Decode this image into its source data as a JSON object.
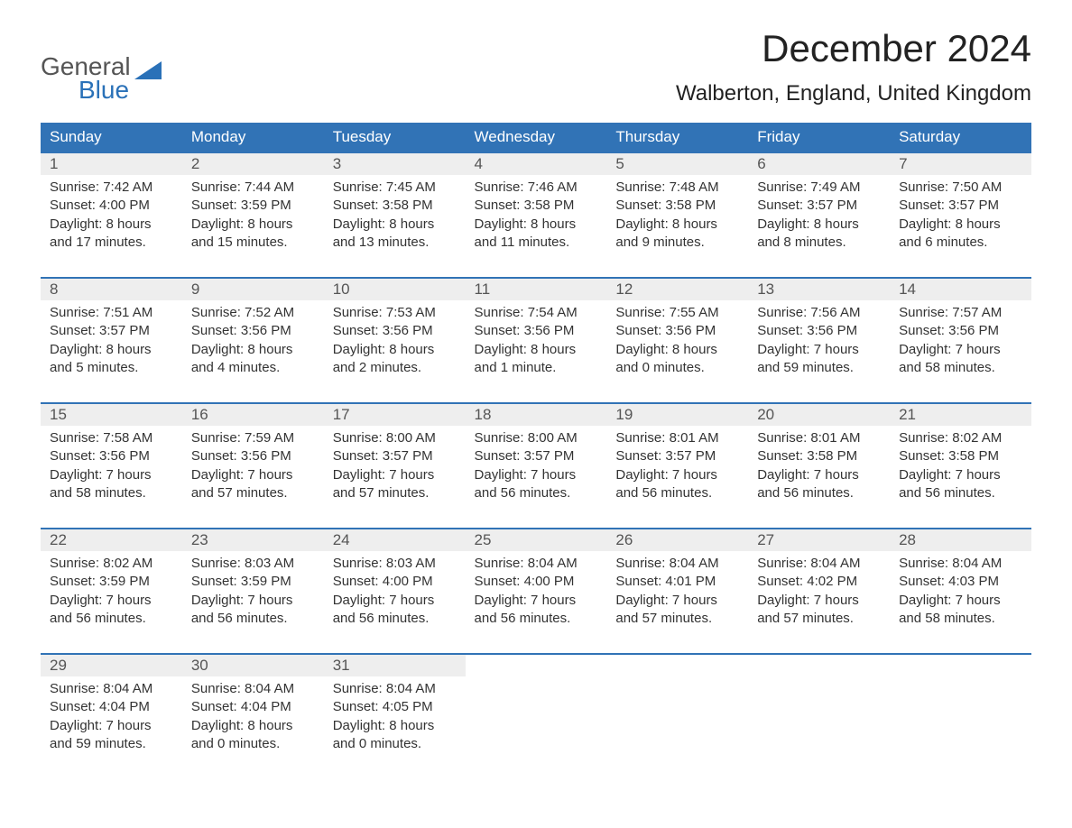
{
  "logo": {
    "top": "General",
    "bottom": "Blue"
  },
  "title": "December 2024",
  "location": "Walberton, England, United Kingdom",
  "colors": {
    "header_bg": "#3173b6",
    "header_text": "#ffffff",
    "daynum_bg": "#eeeeee",
    "text": "#333333",
    "accent": "#2a71b8"
  },
  "font": {
    "family": "Arial",
    "title_size": 42,
    "location_size": 24,
    "header_size": 17,
    "cell_size": 15
  },
  "weekdays": [
    "Sunday",
    "Monday",
    "Tuesday",
    "Wednesday",
    "Thursday",
    "Friday",
    "Saturday"
  ],
  "start_weekday_index": 0,
  "days": [
    {
      "n": 1,
      "sunrise": "7:42 AM",
      "sunset": "4:00 PM",
      "daylight": "8 hours and 17 minutes."
    },
    {
      "n": 2,
      "sunrise": "7:44 AM",
      "sunset": "3:59 PM",
      "daylight": "8 hours and 15 minutes."
    },
    {
      "n": 3,
      "sunrise": "7:45 AM",
      "sunset": "3:58 PM",
      "daylight": "8 hours and 13 minutes."
    },
    {
      "n": 4,
      "sunrise": "7:46 AM",
      "sunset": "3:58 PM",
      "daylight": "8 hours and 11 minutes."
    },
    {
      "n": 5,
      "sunrise": "7:48 AM",
      "sunset": "3:58 PM",
      "daylight": "8 hours and 9 minutes."
    },
    {
      "n": 6,
      "sunrise": "7:49 AM",
      "sunset": "3:57 PM",
      "daylight": "8 hours and 8 minutes."
    },
    {
      "n": 7,
      "sunrise": "7:50 AM",
      "sunset": "3:57 PM",
      "daylight": "8 hours and 6 minutes."
    },
    {
      "n": 8,
      "sunrise": "7:51 AM",
      "sunset": "3:57 PM",
      "daylight": "8 hours and 5 minutes."
    },
    {
      "n": 9,
      "sunrise": "7:52 AM",
      "sunset": "3:56 PM",
      "daylight": "8 hours and 4 minutes."
    },
    {
      "n": 10,
      "sunrise": "7:53 AM",
      "sunset": "3:56 PM",
      "daylight": "8 hours and 2 minutes."
    },
    {
      "n": 11,
      "sunrise": "7:54 AM",
      "sunset": "3:56 PM",
      "daylight": "8 hours and 1 minute."
    },
    {
      "n": 12,
      "sunrise": "7:55 AM",
      "sunset": "3:56 PM",
      "daylight": "8 hours and 0 minutes."
    },
    {
      "n": 13,
      "sunrise": "7:56 AM",
      "sunset": "3:56 PM",
      "daylight": "7 hours and 59 minutes."
    },
    {
      "n": 14,
      "sunrise": "7:57 AM",
      "sunset": "3:56 PM",
      "daylight": "7 hours and 58 minutes."
    },
    {
      "n": 15,
      "sunrise": "7:58 AM",
      "sunset": "3:56 PM",
      "daylight": "7 hours and 58 minutes."
    },
    {
      "n": 16,
      "sunrise": "7:59 AM",
      "sunset": "3:56 PM",
      "daylight": "7 hours and 57 minutes."
    },
    {
      "n": 17,
      "sunrise": "8:00 AM",
      "sunset": "3:57 PM",
      "daylight": "7 hours and 57 minutes."
    },
    {
      "n": 18,
      "sunrise": "8:00 AM",
      "sunset": "3:57 PM",
      "daylight": "7 hours and 56 minutes."
    },
    {
      "n": 19,
      "sunrise": "8:01 AM",
      "sunset": "3:57 PM",
      "daylight": "7 hours and 56 minutes."
    },
    {
      "n": 20,
      "sunrise": "8:01 AM",
      "sunset": "3:58 PM",
      "daylight": "7 hours and 56 minutes."
    },
    {
      "n": 21,
      "sunrise": "8:02 AM",
      "sunset": "3:58 PM",
      "daylight": "7 hours and 56 minutes."
    },
    {
      "n": 22,
      "sunrise": "8:02 AM",
      "sunset": "3:59 PM",
      "daylight": "7 hours and 56 minutes."
    },
    {
      "n": 23,
      "sunrise": "8:03 AM",
      "sunset": "3:59 PM",
      "daylight": "7 hours and 56 minutes."
    },
    {
      "n": 24,
      "sunrise": "8:03 AM",
      "sunset": "4:00 PM",
      "daylight": "7 hours and 56 minutes."
    },
    {
      "n": 25,
      "sunrise": "8:04 AM",
      "sunset": "4:00 PM",
      "daylight": "7 hours and 56 minutes."
    },
    {
      "n": 26,
      "sunrise": "8:04 AM",
      "sunset": "4:01 PM",
      "daylight": "7 hours and 57 minutes."
    },
    {
      "n": 27,
      "sunrise": "8:04 AM",
      "sunset": "4:02 PM",
      "daylight": "7 hours and 57 minutes."
    },
    {
      "n": 28,
      "sunrise": "8:04 AM",
      "sunset": "4:03 PM",
      "daylight": "7 hours and 58 minutes."
    },
    {
      "n": 29,
      "sunrise": "8:04 AM",
      "sunset": "4:04 PM",
      "daylight": "7 hours and 59 minutes."
    },
    {
      "n": 30,
      "sunrise": "8:04 AM",
      "sunset": "4:04 PM",
      "daylight": "8 hours and 0 minutes."
    },
    {
      "n": 31,
      "sunrise": "8:04 AM",
      "sunset": "4:05 PM",
      "daylight": "8 hours and 0 minutes."
    }
  ],
  "labels": {
    "sunrise": "Sunrise: ",
    "sunset": "Sunset: ",
    "daylight": "Daylight: "
  }
}
